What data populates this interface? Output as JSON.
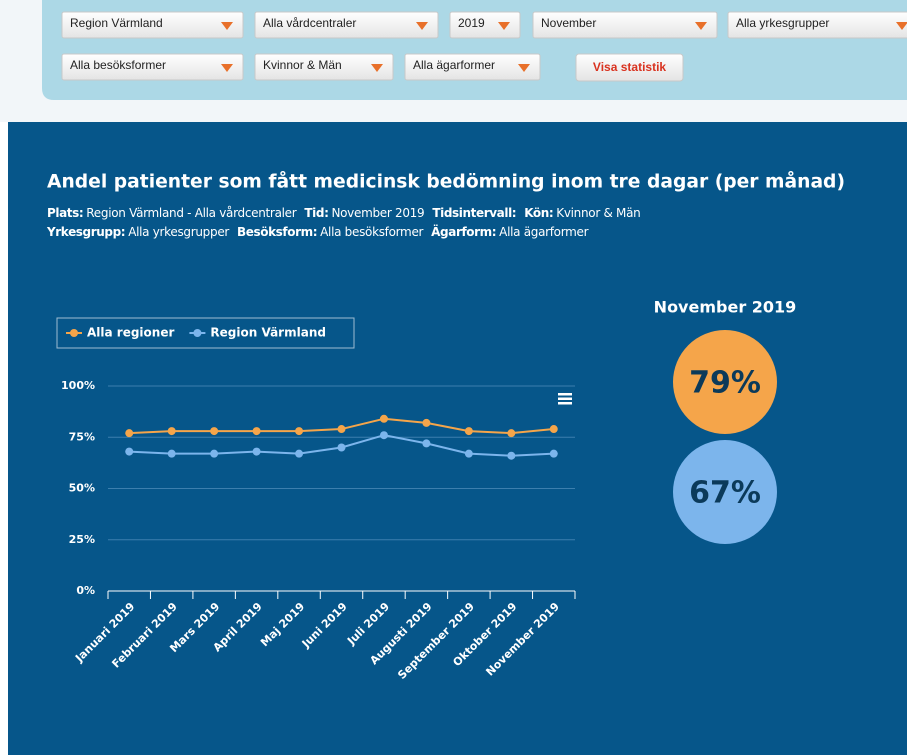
{
  "filters": [
    "Region Värmland",
    "Alla vårdcentraler",
    "2019",
    "November",
    "Alla yrkesgrupper",
    "Alla besöksformer",
    "Kvinnor & Män",
    "Alla ägarformer"
  ],
  "button": "Visa statistik",
  "meta": [
    [
      {
        "label": "Plats:",
        "value": "Region Värmland - Alla vårdcentraler"
      },
      {
        "label": "Tid:",
        "value": "November 2019"
      },
      {
        "label": "Tidsintervall:"
      },
      {
        "label": "Kön:",
        "value": "Kvinnor & Män"
      }
    ],
    [
      {
        "label": "Yrkesgrupp:",
        "value": "Alla yrkesgrupper"
      },
      {
        "label": "Besöksform:",
        "value": "Alla besöksformer"
      },
      {
        "label": "Ägarform:",
        "value": "Alla ägarformer"
      }
    ]
  ],
  "summary": {
    "title": "November 2019",
    "items": [
      {
        "value": 79,
        "label": "79%",
        "color": "#f5a54a"
      },
      {
        "value": 67,
        "label": "67%",
        "color": "#7cb5ec"
      }
    ]
  },
  "chart_data": {
    "type": "line",
    "title": "Andel patienter som fått medicinsk bedömning inom tre dagar (per månad)",
    "categories": [
      "Januari 2019",
      "Februari 2019",
      "Mars 2019",
      "April 2019",
      "Maj 2019",
      "Juni 2019",
      "Juli 2019",
      "Augusti 2019",
      "September 2019",
      "Oktober 2019",
      "November 2019"
    ],
    "series": [
      {
        "name": "Alla regioner",
        "color": "#f5a54a",
        "values": [
          77,
          78,
          78,
          78,
          78,
          79,
          84,
          82,
          78,
          77,
          79
        ]
      },
      {
        "name": "Region Värmland",
        "color": "#7cb5ec",
        "values": [
          68,
          67,
          67,
          68,
          67,
          70,
          76,
          72,
          67,
          66,
          67
        ]
      }
    ],
    "ylim": [
      0,
      100
    ],
    "yticks": [
      {
        "value": 0,
        "label": "0%"
      },
      {
        "value": 25,
        "label": "25%"
      },
      {
        "value": 50,
        "label": "50%"
      },
      {
        "value": 75,
        "label": "75%"
      },
      {
        "value": 100,
        "label": "100%"
      }
    ],
    "grid": true,
    "legend": "top-left"
  }
}
